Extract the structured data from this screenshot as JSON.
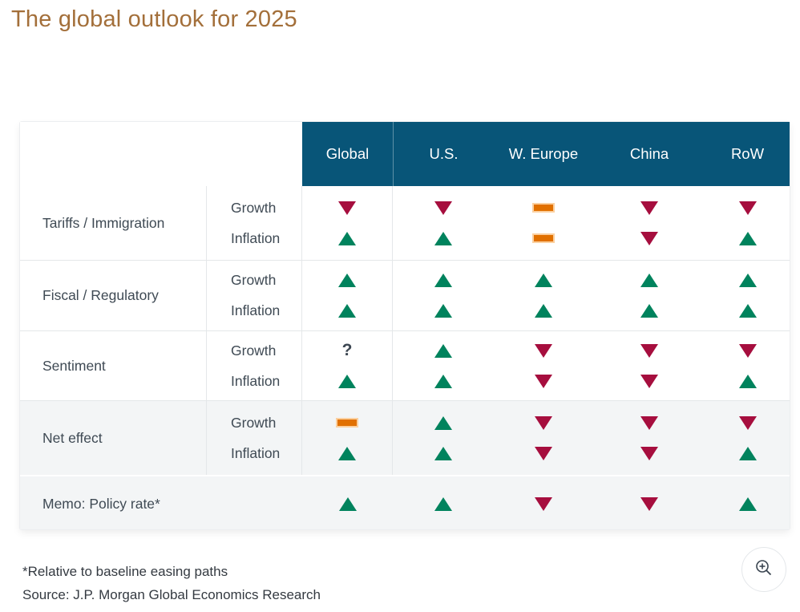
{
  "title": "The global outlook for 2025",
  "footnote": "*Relative to baseline easing paths",
  "source": "Source: J.P. Morgan Global Economics Research",
  "question_char": "?",
  "zoom_button": {
    "icon": "magnifier-plus-icon"
  },
  "colors": {
    "header_bg": "#085578",
    "up": "#00835d",
    "down": "#a60e3e",
    "neutral": "#e17000",
    "title": "#a36f3a"
  },
  "table": {
    "columns": [
      "Global",
      "U.S.",
      "W. Europe",
      "China",
      "RoW"
    ],
    "groups": [
      {
        "label": "Tariffs / Immigration",
        "bg": "white",
        "rows": [
          {
            "label": "Growth",
            "cells": [
              "down",
              "down",
              "neutral",
              "down",
              "down"
            ]
          },
          {
            "label": "Inflation",
            "cells": [
              "up",
              "up",
              "neutral",
              "down",
              "up"
            ]
          }
        ]
      },
      {
        "label": "Fiscal / Regulatory",
        "bg": "white",
        "rows": [
          {
            "label": "Growth",
            "cells": [
              "up",
              "up",
              "up",
              "up",
              "up"
            ]
          },
          {
            "label": "Inflation",
            "cells": [
              "up",
              "up",
              "up",
              "up",
              "up"
            ]
          }
        ]
      },
      {
        "label": "Sentiment",
        "bg": "white",
        "rows": [
          {
            "label": "Growth",
            "cells": [
              "question",
              "up",
              "down",
              "down",
              "down"
            ]
          },
          {
            "label": "Inflation",
            "cells": [
              "up",
              "up",
              "down",
              "down",
              "up"
            ]
          }
        ]
      },
      {
        "label": "Net effect",
        "bg": "gray",
        "rows": [
          {
            "label": "Growth",
            "cells": [
              "neutral",
              "up",
              "down",
              "down",
              "down"
            ]
          },
          {
            "label": "Inflation",
            "cells": [
              "up",
              "up",
              "down",
              "down",
              "up"
            ]
          }
        ]
      }
    ],
    "memo": {
      "label": "Memo: Policy rate*",
      "cells": [
        "up",
        "up",
        "down",
        "down",
        "up"
      ]
    }
  },
  "chart_data": {
    "type": "table",
    "title": "The global outlook for 2025",
    "columns": [
      "Global",
      "U.S.",
      "W. Europe",
      "China",
      "RoW"
    ],
    "rows": [
      {
        "group": "Tariffs / Immigration",
        "metric": "Growth",
        "values": [
          "down",
          "down",
          "neutral",
          "down",
          "down"
        ]
      },
      {
        "group": "Tariffs / Immigration",
        "metric": "Inflation",
        "values": [
          "up",
          "up",
          "neutral",
          "down",
          "up"
        ]
      },
      {
        "group": "Fiscal / Regulatory",
        "metric": "Growth",
        "values": [
          "up",
          "up",
          "up",
          "up",
          "up"
        ]
      },
      {
        "group": "Fiscal / Regulatory",
        "metric": "Inflation",
        "values": [
          "up",
          "up",
          "up",
          "up",
          "up"
        ]
      },
      {
        "group": "Sentiment",
        "metric": "Growth",
        "values": [
          "uncertain",
          "up",
          "down",
          "down",
          "down"
        ]
      },
      {
        "group": "Sentiment",
        "metric": "Inflation",
        "values": [
          "up",
          "up",
          "down",
          "down",
          "up"
        ]
      },
      {
        "group": "Net effect",
        "metric": "Growth",
        "values": [
          "neutral",
          "up",
          "down",
          "down",
          "down"
        ]
      },
      {
        "group": "Net effect",
        "metric": "Inflation",
        "values": [
          "up",
          "up",
          "down",
          "down",
          "up"
        ]
      },
      {
        "group": "Memo: Policy rate*",
        "metric": "",
        "values": [
          "up",
          "up",
          "down",
          "down",
          "up"
        ]
      }
    ],
    "symbols": {
      "up": "green up-triangle (increase)",
      "down": "red down-triangle (decrease)",
      "neutral": "orange dash (flat)",
      "uncertain": "question mark"
    },
    "footnote": "*Relative to baseline easing paths",
    "source": "Source: J.P. Morgan Global Economics Research"
  }
}
